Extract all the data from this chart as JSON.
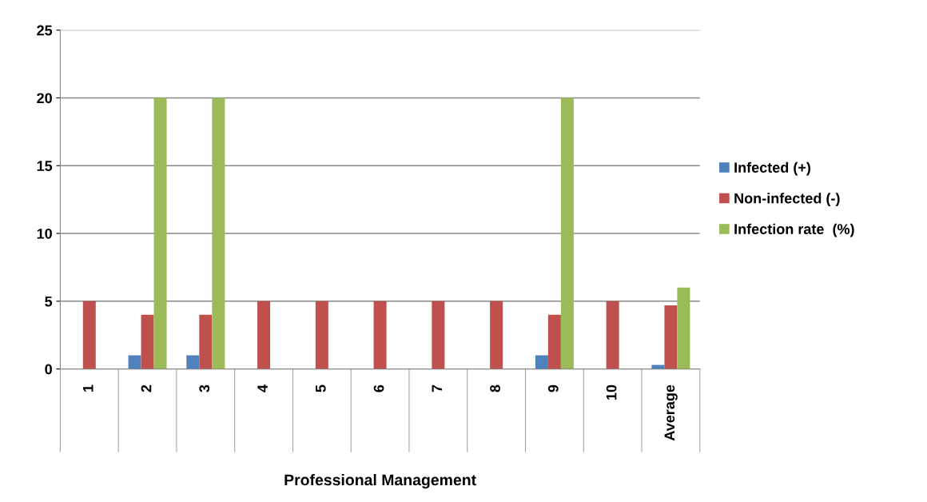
{
  "chart_data": {
    "type": "bar",
    "xlabel": "Professional Management",
    "categories": [
      "1",
      "2",
      "3",
      "4",
      "5",
      "6",
      "7",
      "8",
      "9",
      "10",
      "Average"
    ],
    "series": [
      {
        "name": "Infected (+)",
        "color": "#4f81bd",
        "values": [
          0,
          1,
          1,
          0,
          0,
          0,
          0,
          0,
          1,
          0,
          0.3
        ]
      },
      {
        "name": "Non-infected (-)",
        "color": "#c0504d",
        "values": [
          5,
          4,
          4,
          5,
          5,
          5,
          5,
          5,
          4,
          5,
          4.7
        ]
      },
      {
        "name": "Infection rate  (%)",
        "color": "#9bbb59",
        "values": [
          0,
          20,
          20,
          0,
          0,
          0,
          0,
          0,
          20,
          0,
          6
        ]
      }
    ],
    "ylim": [
      0,
      25
    ],
    "yticks": [
      0,
      5,
      10,
      15,
      20,
      25
    ],
    "grid": "y",
    "legend": "right"
  }
}
